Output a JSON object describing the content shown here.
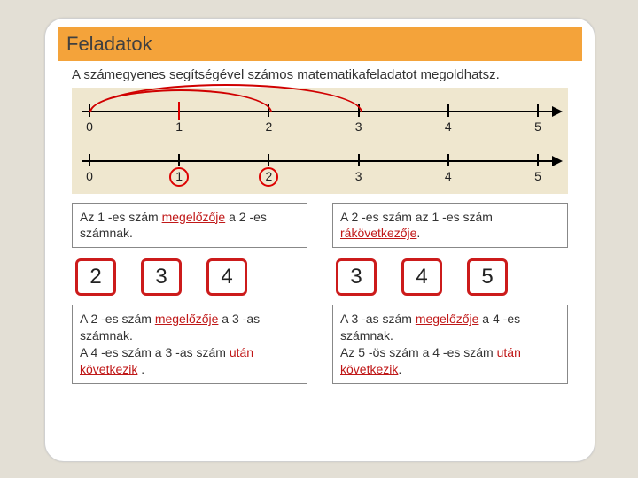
{
  "title": "Feladatok",
  "intro": "A számegyenes segítségével számos matematikafeladatot megoldhatsz.",
  "numberlines": {
    "background": "#efe7cf",
    "axis_color": "#000000",
    "arc_color": "#d00000",
    "circle_color": "#d00000",
    "labels": [
      "0",
      "1",
      "2",
      "3",
      "4",
      "5"
    ],
    "line1_arcs": [
      {
        "from_idx": 0,
        "to_idx": 2,
        "height": 24
      },
      {
        "from_idx": 0,
        "to_idx": 3,
        "height": 30
      }
    ],
    "line1_red_tick_idx": 1,
    "line2_circles_idx": [
      1,
      2
    ]
  },
  "left": {
    "box1_pre": "Az 1 -es szám ",
    "box1_hl": "megelőzője",
    "box1_post": " a 2 -es számnak.",
    "nums": [
      "2",
      "3",
      "4"
    ],
    "box2_p1_pre": "A 2 -es szám ",
    "box2_p1_hl": "megelőzője",
    "box2_p1_post": " a 3 -as számnak.",
    "box2_p2_pre": "A 4 -es szám a 3 -as szám ",
    "box2_p2_hl": "után következik",
    "box2_p2_post": " ."
  },
  "right": {
    "box1_pre": "A 2 -es szám az 1 -es szám ",
    "box1_hl": "rákövetkezője",
    "box1_post": ".",
    "nums": [
      "3",
      "4",
      "5"
    ],
    "box2_p1_pre": "A 3 -as szám ",
    "box2_p1_hl": "megelőzője",
    "box2_p1_post": " a 4 -es számnak.",
    "box2_p2_pre": " Az 5 -ös szám a 4 -es szám ",
    "box2_p2_hl": "után következik",
    "box2_p2_post": "."
  },
  "style": {
    "num_border_color": "#cc1b1b",
    "highlight_color": "#c01818"
  }
}
